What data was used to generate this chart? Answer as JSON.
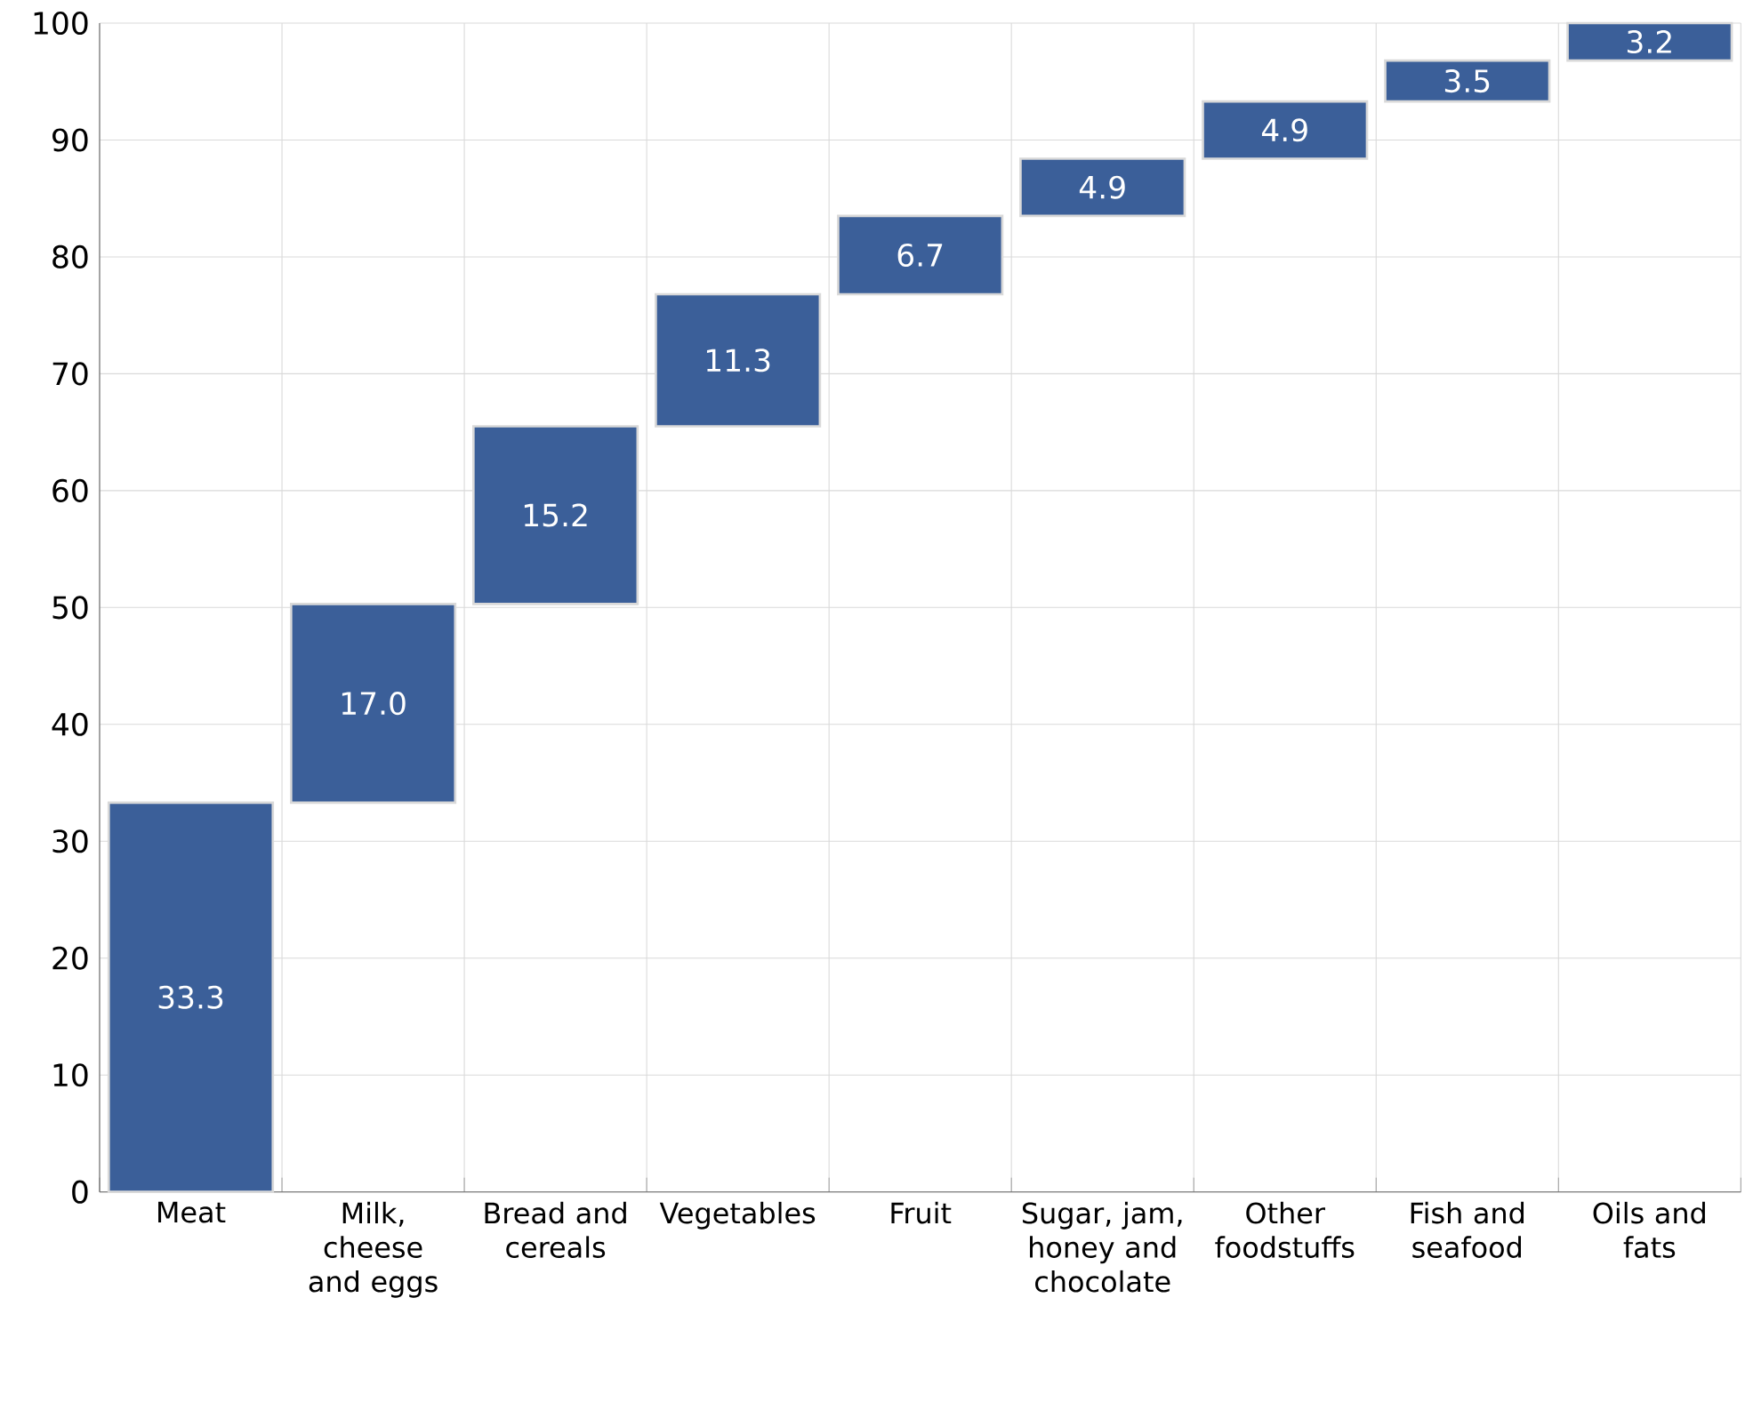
{
  "chart_data": {
    "type": "bar",
    "categories": [
      "Meat",
      "Milk, cheese and eggs",
      "Bread and cereals",
      "Vegetables",
      "Fruit",
      "Sugar, jam, honey and chocolate",
      "Other foodstuffs",
      "Fish and seafood",
      "Oils and fats"
    ],
    "values": [
      33.3,
      17.0,
      15.2,
      11.3,
      6.7,
      4.9,
      4.9,
      3.5,
      3.2
    ],
    "base": [
      0,
      33.3,
      50.3,
      65.5,
      76.8,
      83.5,
      88.4,
      93.3,
      96.8
    ],
    "color": "#3b5f99",
    "value_labels": [
      "33.3",
      "17.0",
      "15.2",
      "11.3",
      "6.7",
      "4.9",
      "4.9",
      "3.5",
      "3.2"
    ],
    "ylim": [
      0,
      100
    ],
    "yticks": [
      0,
      10,
      20,
      30,
      40,
      50,
      60,
      70,
      80,
      90,
      100
    ],
    "grid": true
  }
}
